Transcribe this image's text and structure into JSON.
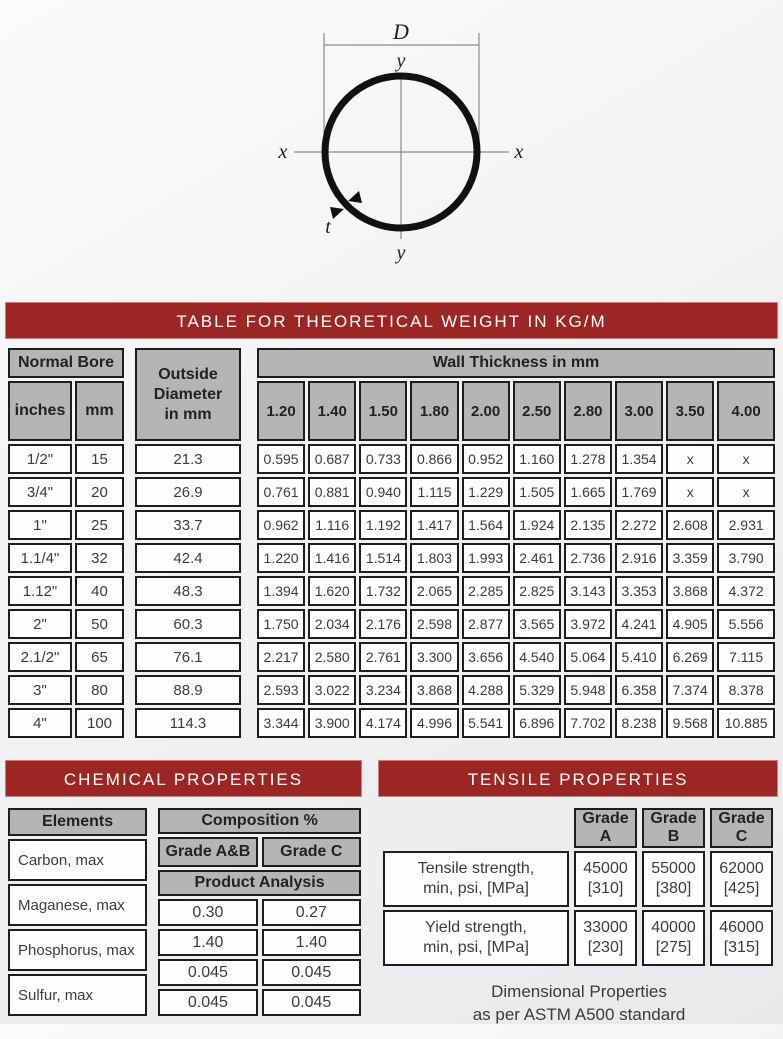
{
  "diagram": {
    "d_label": "D",
    "y_top_label": "y",
    "y_bottom_label": "y",
    "x_left_label": "x",
    "x_right_label": "x",
    "t_label": "t"
  },
  "weight_table": {
    "title": "TABLE FOR THEORETICAL WEIGHT IN KG/M",
    "normal_bore_header": "Normal Bore",
    "inches_header": "inches",
    "mm_header": "mm",
    "od_header": "Outside\nDiameter\nin mm",
    "wall_header": "Wall Thickness in mm",
    "thickness_columns": [
      "1.20",
      "1.40",
      "1.50",
      "1.80",
      "2.00",
      "2.50",
      "2.80",
      "3.00",
      "3.50",
      "4.00"
    ],
    "rows": [
      {
        "inches": "1/2\"",
        "mm": "15",
        "od": "21.3",
        "weights": [
          "0.595",
          "0.687",
          "0.733",
          "0.866",
          "0.952",
          "1.160",
          "1.278",
          "1.354",
          "x",
          "x"
        ]
      },
      {
        "inches": "3/4\"",
        "mm": "20",
        "od": "26.9",
        "weights": [
          "0.761",
          "0.881",
          "0.940",
          "1.115",
          "1.229",
          "1.505",
          "1.665",
          "1.769",
          "x",
          "x"
        ]
      },
      {
        "inches": "1\"",
        "mm": "25",
        "od": "33.7",
        "weights": [
          "0.962",
          "1.116",
          "1.192",
          "1.417",
          "1.564",
          "1.924",
          "2.135",
          "2.272",
          "2.608",
          "2.931"
        ]
      },
      {
        "inches": "1.1/4\"",
        "mm": "32",
        "od": "42.4",
        "weights": [
          "1.220",
          "1.416",
          "1.514",
          "1.803",
          "1.993",
          "2.461",
          "2.736",
          "2.916",
          "3.359",
          "3.790"
        ]
      },
      {
        "inches": "1.12\"",
        "mm": "40",
        "od": "48.3",
        "weights": [
          "1.394",
          "1.620",
          "1.732",
          "2.065",
          "2.285",
          "2.825",
          "3.143",
          "3.353",
          "3.868",
          "4.372"
        ]
      },
      {
        "inches": "2\"",
        "mm": "50",
        "od": "60.3",
        "weights": [
          "1.750",
          "2.034",
          "2.176",
          "2.598",
          "2.877",
          "3.565",
          "3.972",
          "4.241",
          "4.905",
          "5.556"
        ]
      },
      {
        "inches": "2.1/2\"",
        "mm": "65",
        "od": "76.1",
        "weights": [
          "2.217",
          "2.580",
          "2.761",
          "3.300",
          "3.656",
          "4.540",
          "5.064",
          "5.410",
          "6.269",
          "7.115"
        ]
      },
      {
        "inches": "3\"",
        "mm": "80",
        "od": "88.9",
        "weights": [
          "2.593",
          "3.022",
          "3.234",
          "3.868",
          "4.288",
          "5.329",
          "5.948",
          "6.358",
          "7.374",
          "8.378"
        ]
      },
      {
        "inches": "4\"",
        "mm": "100",
        "od": "114.3",
        "weights": [
          "3.344",
          "3.900",
          "4.174",
          "4.996",
          "5.541",
          "6.896",
          "7.702",
          "8.238",
          "9.568",
          "10.885"
        ]
      }
    ]
  },
  "chemical": {
    "title": "CHEMICAL PROPERTIES",
    "elements_header": "Elements",
    "elements": [
      "Carbon, max",
      "Maganese, max",
      "Phosphorus, max",
      "Sulfur, max"
    ],
    "composition_header": "Composition %",
    "grade_ab_header": "Grade A&B",
    "grade_c_header": "Grade C",
    "product_analysis_header": "Product Analysis",
    "composition_rows": [
      [
        "0.30",
        "0.27"
      ],
      [
        "1.40",
        "1.40"
      ],
      [
        "0.045",
        "0.045"
      ],
      [
        "0.045",
        "0.045"
      ]
    ]
  },
  "tensile": {
    "title": "TENSILE PROPERTIES",
    "grade_headers": [
      "Grade A",
      "Grade B",
      "Grade C"
    ],
    "rows": [
      {
        "label": "Tensile strength,\nmin, psi, [MPa]",
        "values": [
          "45000\n[310]",
          "55000\n[380]",
          "62000\n[425]"
        ]
      },
      {
        "label": "Yield strength,\nmin, psi, [MPa]",
        "values": [
          "33000\n[230]",
          "40000\n[275]",
          "46000\n[315]"
        ]
      }
    ],
    "footer": "Dimensional Properties\nas per ASTM A500 standard"
  },
  "colors": {
    "accent_red": "#9b2623",
    "header_gray": "#b5b5b7",
    "border": "#1d1d1b"
  }
}
